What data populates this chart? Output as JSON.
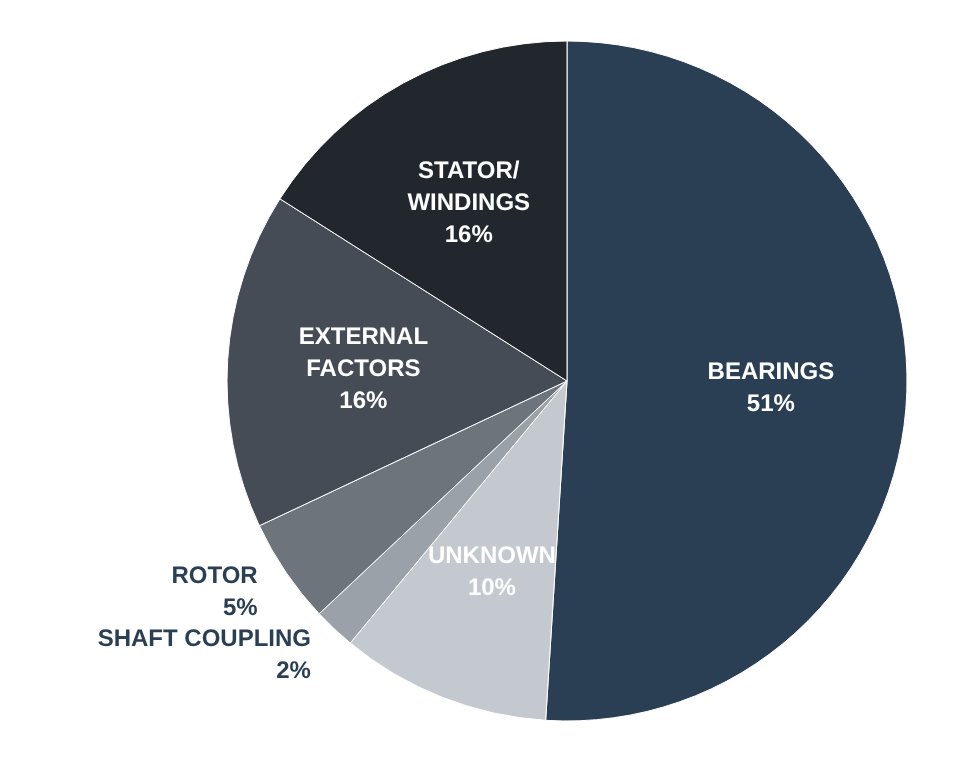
{
  "chart_data": {
    "type": "pie",
    "categories": [
      "BEARINGS",
      "UNKNOWN",
      "SHAFT COUPLING",
      "ROTOR",
      "EXTERNAL\nFACTORS",
      "STATOR/\nWINDINGS"
    ],
    "values": [
      51,
      10,
      2,
      5,
      16,
      16
    ],
    "value_labels": [
      "51%",
      "10%",
      "2%",
      "5%",
      "16%",
      "16%"
    ],
    "colors": [
      "#2b3f54",
      "#c4c9cf",
      "#9ba1a8",
      "#6d747c",
      "#454c55",
      "#22272d"
    ]
  }
}
